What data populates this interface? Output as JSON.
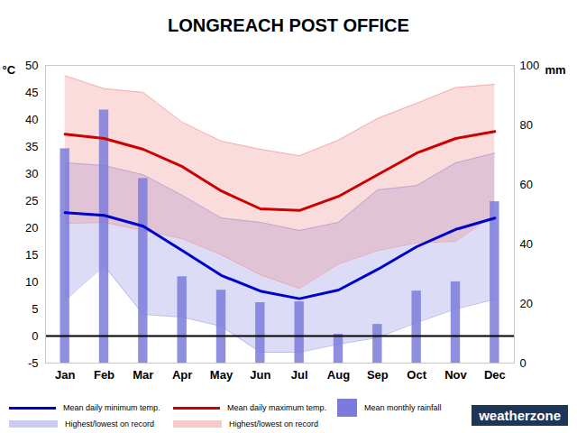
{
  "chart_data": {
    "type": "line",
    "title": "LONGREACH POST OFFICE",
    "source": "weatherzone",
    "categories": [
      "Jan",
      "Feb",
      "Mar",
      "Apr",
      "May",
      "Jun",
      "Jul",
      "Aug",
      "Sep",
      "Oct",
      "Nov",
      "Dec"
    ],
    "y_label": "°C",
    "y2_label": "mm",
    "ylim": [
      -5,
      50
    ],
    "yticks": [
      -5,
      0,
      5,
      10,
      15,
      20,
      25,
      30,
      35,
      40,
      45,
      50
    ],
    "y2lim": [
      0,
      100
    ],
    "y2ticks": [
      0,
      20,
      40,
      60,
      80,
      100
    ],
    "grid": false,
    "legend": "bottom",
    "series": [
      {
        "name": "Mean daily minimum temp.",
        "type": "line",
        "color": "#0000cc",
        "values": [
          22.8,
          22.3,
          20.3,
          15.8,
          11.2,
          8.3,
          6.9,
          8.5,
          12.3,
          16.5,
          19.7,
          21.8
        ]
      },
      {
        "name": "Highest/lowest on record",
        "type": "band",
        "color": "#8c8ce6",
        "values": [
          [
            6.6,
            32.0
          ],
          [
            13.0,
            31.5
          ],
          [
            4.0,
            29.8
          ],
          [
            3.5,
            26.0
          ],
          [
            1.8,
            21.8
          ],
          [
            -3.0,
            21.0
          ],
          [
            -3.0,
            19.5
          ],
          [
            -1.5,
            21.0
          ],
          [
            -0.3,
            27.0
          ],
          [
            2.5,
            27.8
          ],
          [
            5.0,
            32.0
          ],
          [
            6.8,
            33.8
          ]
        ]
      },
      {
        "name": "Mean daily maximum temp.",
        "type": "line",
        "color": "#cc0000",
        "values": [
          37.3,
          36.5,
          34.5,
          31.3,
          26.8,
          23.5,
          23.2,
          25.8,
          29.8,
          33.8,
          36.5,
          37.8
        ]
      },
      {
        "name": "Highest/lowest on record",
        "type": "band",
        "color": "#f08c8c",
        "values": [
          [
            20.8,
            48.1
          ],
          [
            21.0,
            45.7
          ],
          [
            19.5,
            45.0
          ],
          [
            18.0,
            39.5
          ],
          [
            15.0,
            36.0
          ],
          [
            11.3,
            34.5
          ],
          [
            8.8,
            33.3
          ],
          [
            13.3,
            36.2
          ],
          [
            15.8,
            40.2
          ],
          [
            17.2,
            43.0
          ],
          [
            17.5,
            45.9
          ],
          [
            22.5,
            46.5
          ]
        ]
      },
      {
        "name": "Mean monthly rainfall",
        "type": "bar",
        "axis": "y2",
        "color": "#7b7bdb",
        "values": [
          72,
          85,
          62,
          29,
          24.5,
          20.3,
          20.6,
          9.7,
          13,
          24.2,
          27.3,
          54.2
        ]
      }
    ]
  }
}
